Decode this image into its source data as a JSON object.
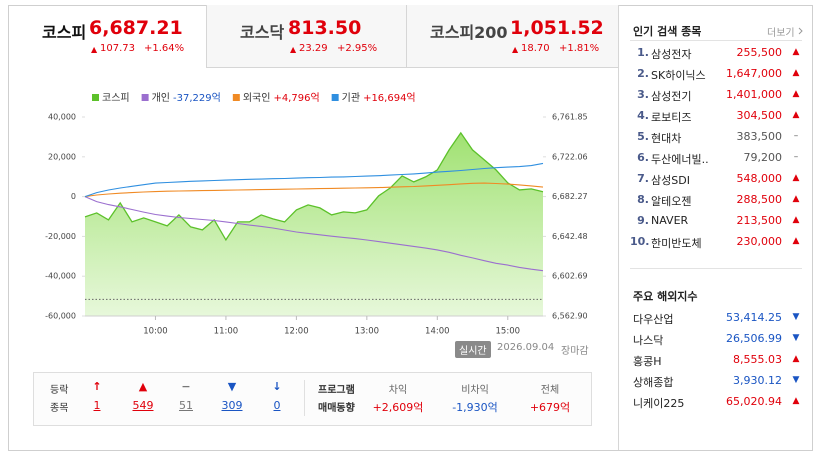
{
  "tabs": [
    {
      "name": "코스피",
      "value": "6,687.21",
      "arrow": "▲",
      "change": "107.73",
      "rate": "+1.64%",
      "active": true
    },
    {
      "name": "코스닥",
      "value": "813.50",
      "arrow": "▲",
      "change": "23.29",
      "rate": "+2.95%",
      "active": false
    },
    {
      "name": "코스피200",
      "value": "1,051.52",
      "arrow": "▲",
      "change": "18.70",
      "rate": "+1.81%",
      "active": false
    }
  ],
  "chart": {
    "type": "line",
    "x": [
      "09:00",
      "09:10",
      "09:20",
      "09:30",
      "09:40",
      "09:50",
      "10:00",
      "10:10",
      "10:20",
      "10:30",
      "10:40",
      "10:50",
      "11:00",
      "11:10",
      "11:20",
      "11:30",
      "11:40",
      "11:50",
      "12:00",
      "12:10",
      "12:20",
      "12:30",
      "12:40",
      "12:50",
      "13:00",
      "13:10",
      "13:20",
      "13:30",
      "13:40",
      "13:50",
      "14:00",
      "14:10",
      "14:20",
      "14:30",
      "14:40",
      "14:50",
      "15:00",
      "15:10",
      "15:20",
      "15:30"
    ],
    "xticks": [
      "10:00",
      "11:00",
      "12:00",
      "13:00",
      "14:00",
      "15:00"
    ],
    "series": [
      {
        "name": "코스피",
        "color": "#5cc12a",
        "axis": "y2",
        "area": true,
        "values": [
          6662,
          6666,
          6659,
          6676,
          6657,
          6661,
          6657,
          6653,
          6664,
          6652,
          6649,
          6659,
          6639,
          6657,
          6657,
          6664,
          6660,
          6657,
          6669,
          6674,
          6671,
          6664,
          6667,
          6666,
          6669,
          6683,
          6691,
          6703,
          6697,
          6702,
          6709,
          6729,
          6746,
          6729,
          6719,
          6709,
          6696,
          6689,
          6690,
          6687.21
        ]
      },
      {
        "name": "개인",
        "legend_value": "-37,229억",
        "legend_color": "#1a55c3",
        "color": "#9b6fcf",
        "axis": "y",
        "values": [
          0,
          -2500,
          -4000,
          -5200,
          -6500,
          -7800,
          -9000,
          -9800,
          -10500,
          -11000,
          -11500,
          -12000,
          -12700,
          -13500,
          -14300,
          -15000,
          -15800,
          -16800,
          -17800,
          -18500,
          -19200,
          -19900,
          -20500,
          -21100,
          -21800,
          -22600,
          -23400,
          -24200,
          -25000,
          -25900,
          -26800,
          -28000,
          -29500,
          -30800,
          -32200,
          -33500,
          -34400,
          -35600,
          -36500,
          -37229
        ]
      },
      {
        "name": "외국인",
        "legend_value": "+4,796억",
        "legend_color": "#e0000b",
        "color": "#f08a24",
        "axis": "y",
        "values": [
          0,
          800,
          1300,
          1700,
          2000,
          2300,
          2500,
          2700,
          2800,
          2900,
          3000,
          3100,
          3200,
          3300,
          3400,
          3500,
          3600,
          3700,
          3800,
          3900,
          4000,
          4100,
          4200,
          4300,
          4400,
          4500,
          4700,
          4900,
          5100,
          5400,
          5700,
          6000,
          6400,
          6700,
          6800,
          6600,
          6300,
          5900,
          5400,
          4796
        ]
      },
      {
        "name": "기관",
        "legend_value": "+16,694억",
        "legend_color": "#e0000b",
        "color": "#2f8fe0",
        "axis": "y",
        "values": [
          0,
          2000,
          3300,
          4300,
          5200,
          6000,
          6800,
          7100,
          7400,
          7700,
          7900,
          8100,
          8300,
          8500,
          8700,
          8800,
          9000,
          9100,
          9300,
          9500,
          9600,
          9800,
          9900,
          10100,
          10300,
          10500,
          10800,
          11100,
          11400,
          11800,
          12300,
          12700,
          13100,
          13600,
          14100,
          14500,
          14800,
          15100,
          15600,
          16694
        ]
      }
    ],
    "ylim": [
      -60000,
      40000
    ],
    "yticks": [
      {
        "value": 40000,
        "label": "40,000"
      },
      {
        "value": 20000,
        "label": "20,000"
      },
      0,
      {
        "value": -20000,
        "label": "-20,000"
      },
      {
        "value": -40000,
        "label": "-40,000"
      },
      {
        "value": -60000,
        "label": "-60,000"
      }
    ],
    "y2lim": [
      6562.9,
      6761.85
    ],
    "y2ticks": [
      {
        "value": 6761.85,
        "label": "6,761.85"
      },
      {
        "value": 6722.06,
        "label": "6,722.06"
      },
      {
        "value": 6682.27,
        "label": "6,682.27"
      },
      {
        "value": 6642.48,
        "label": "6,642.48"
      },
      {
        "value": 6602.69,
        "label": "6,602.69"
      },
      {
        "value": 6562.9,
        "label": "6,562.90"
      }
    ],
    "reference_line": 6579.48
  },
  "status": {
    "badge": "실시간",
    "date": "2026.09.04",
    "state": "장마감"
  },
  "breadth": {
    "label": [
      "등락",
      "종목"
    ],
    "items": [
      {
        "icon": "↑",
        "count": "1",
        "color": "#e0000b"
      },
      {
        "icon": "▲",
        "count": "549",
        "color": "#e0000b"
      },
      {
        "icon": "−",
        "count": "51",
        "color": "#777777"
      },
      {
        "icon": "▼",
        "count": "309",
        "color": "#1a55c3"
      },
      {
        "icon": "↓",
        "count": "0",
        "color": "#1a55c3"
      }
    ]
  },
  "program": {
    "label": [
      "프로그램",
      "매매동향"
    ],
    "items": [
      {
        "name": "차익",
        "value": "+2,609억",
        "color": "#e0000b"
      },
      {
        "name": "비차익",
        "value": "-1,930억",
        "color": "#1a55c3"
      },
      {
        "name": "전체",
        "value": "+679억",
        "color": "#e0000b"
      }
    ]
  },
  "popular": {
    "title": "인기 검색 종목",
    "more": "더보기",
    "rows": [
      {
        "rank": "1.",
        "name": "삼성전자",
        "price": "255,500",
        "sign": "▲",
        "color": "#e0000b"
      },
      {
        "rank": "2.",
        "name": "SK하이닉스",
        "price": "1,647,000",
        "sign": "▲",
        "color": "#e0000b"
      },
      {
        "rank": "3.",
        "name": "삼성전기",
        "price": "1,401,000",
        "sign": "▲",
        "color": "#e0000b"
      },
      {
        "rank": "4.",
        "name": "로보티즈",
        "price": "304,500",
        "sign": "▲",
        "color": "#e0000b"
      },
      {
        "rank": "5.",
        "name": "현대차",
        "price": "383,500",
        "sign": "–",
        "color": "#555555"
      },
      {
        "rank": "6.",
        "name": "두산에너빌..",
        "price": "79,200",
        "sign": "–",
        "color": "#555555"
      },
      {
        "rank": "7.",
        "name": "삼성SDI",
        "price": "548,000",
        "sign": "▲",
        "color": "#e0000b"
      },
      {
        "rank": "8.",
        "name": "알테오젠",
        "price": "288,500",
        "sign": "▲",
        "color": "#e0000b"
      },
      {
        "rank": "9.",
        "name": "NAVER",
        "price": "213,500",
        "sign": "▲",
        "color": "#e0000b"
      },
      {
        "rank": "10.",
        "name": "한미반도체",
        "price": "230,000",
        "sign": "▲",
        "color": "#e0000b"
      }
    ]
  },
  "overseas": {
    "title": "주요 해외지수",
    "rows": [
      {
        "name": "다우산업",
        "value": "53,414.25",
        "sign": "▼",
        "color": "#1a55c3"
      },
      {
        "name": "나스닥",
        "value": "26,506.99",
        "sign": "▼",
        "color": "#1a55c3"
      },
      {
        "name": "홍콩H",
        "value": "8,555.03",
        "sign": "▲",
        "color": "#e0000b"
      },
      {
        "name": "상해종합",
        "value": "3,930.12",
        "sign": "▼",
        "color": "#1a55c3"
      },
      {
        "name": "니케이225",
        "value": "65,020.94",
        "sign": "▲",
        "color": "#e0000b"
      }
    ]
  }
}
